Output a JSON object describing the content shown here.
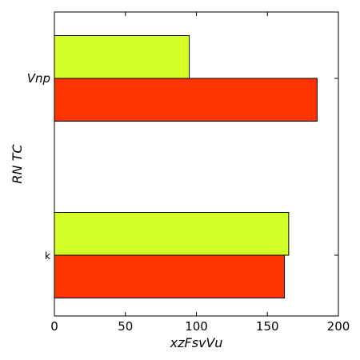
{
  "chart_data": {
    "type": "bar",
    "orientation": "horizontal",
    "categories": [
      "k",
      "Vnp"
    ],
    "series": [
      {
        "values": [
          162,
          185
        ],
        "color": "#ff3300"
      },
      {
        "values": [
          165,
          95
        ],
        "color": "#d4ff26"
      }
    ],
    "xlabel": "xzFsvVu",
    "ylabel": "RN  TC",
    "xlim": [
      0,
      200
    ],
    "xticks": [
      "0",
      "50",
      "100",
      "150",
      "200"
    ],
    "grid": false
  }
}
